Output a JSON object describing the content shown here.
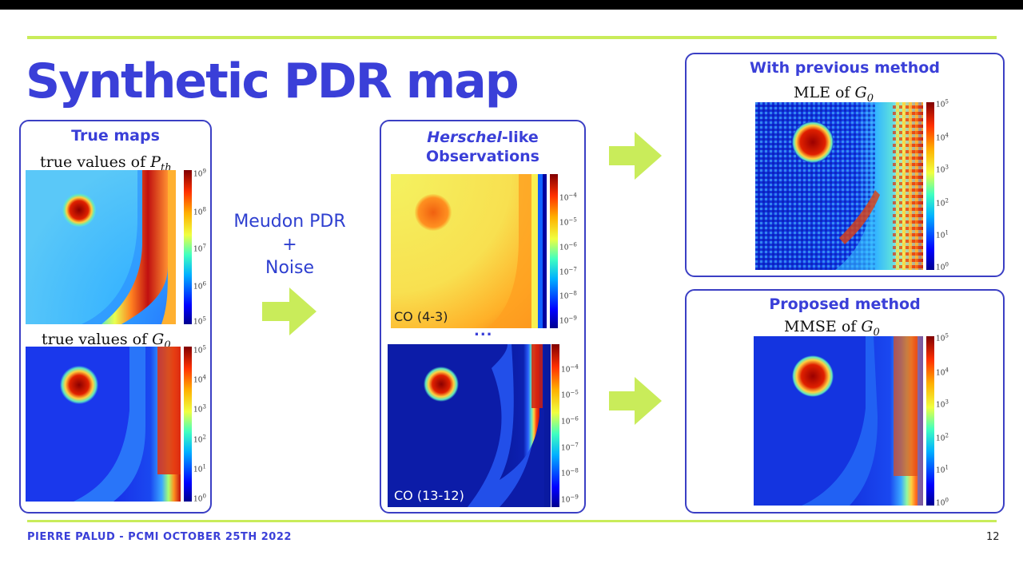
{
  "slide": {
    "title": "Synthetic PDR map",
    "footer": "PIERRE PALUD - PCMI OCTOBER 25TH 2022",
    "page_number": "12",
    "accent_color": "#3a3fd8",
    "rule_color": "#c9ec5a",
    "arrow_color": "#c9ec5a"
  },
  "true_maps": {
    "title": "True maps",
    "map1": {
      "label_text": "true values of ",
      "label_symbol": "P",
      "label_sub": "th",
      "ticks": [
        {
          "b": "10",
          "e": "9"
        },
        {
          "b": "10",
          "e": "8"
        },
        {
          "b": "10",
          "e": "7"
        },
        {
          "b": "10",
          "e": "6"
        },
        {
          "b": "10",
          "e": "5"
        }
      ]
    },
    "map2": {
      "label_text": "true values of ",
      "label_symbol": "G",
      "label_sub": "0",
      "ticks": [
        {
          "b": "10",
          "e": "5"
        },
        {
          "b": "10",
          "e": "4"
        },
        {
          "b": "10",
          "e": "3"
        },
        {
          "b": "10",
          "e": "2"
        },
        {
          "b": "10",
          "e": "1"
        },
        {
          "b": "10",
          "e": "0"
        }
      ]
    }
  },
  "middle": {
    "line1": "Meudon PDR",
    "line2": "+",
    "line3": "Noise"
  },
  "observations": {
    "title_italic": "Herschel",
    "title_rest": "-like",
    "title_line2": "Observations",
    "ellipsis": "...",
    "map1": {
      "label": "CO (4-3)",
      "ticks": [
        {
          "b": "10",
          "e": "−4"
        },
        {
          "b": "10",
          "e": "−5"
        },
        {
          "b": "10",
          "e": "−6"
        },
        {
          "b": "10",
          "e": "−7"
        },
        {
          "b": "10",
          "e": "−8"
        },
        {
          "b": "10",
          "e": "−9"
        }
      ]
    },
    "map2": {
      "label": "CO (13-12)",
      "ticks": [
        {
          "b": "10",
          "e": "−4"
        },
        {
          "b": "10",
          "e": "−5"
        },
        {
          "b": "10",
          "e": "−6"
        },
        {
          "b": "10",
          "e": "−7"
        },
        {
          "b": "10",
          "e": "−8"
        },
        {
          "b": "10",
          "e": "−9"
        }
      ]
    }
  },
  "previous": {
    "title": "With previous method",
    "label_text": "MLE of ",
    "label_symbol": "G",
    "label_sub": "0",
    "ticks": [
      {
        "b": "10",
        "e": "5"
      },
      {
        "b": "10",
        "e": "4"
      },
      {
        "b": "10",
        "e": "3"
      },
      {
        "b": "10",
        "e": "2"
      },
      {
        "b": "10",
        "e": "1"
      },
      {
        "b": "10",
        "e": "0"
      }
    ]
  },
  "proposed": {
    "title": "Proposed method",
    "label_text": "MMSE of ",
    "label_symbol": "G",
    "label_sub": "0",
    "ticks": [
      {
        "b": "10",
        "e": "5"
      },
      {
        "b": "10",
        "e": "4"
      },
      {
        "b": "10",
        "e": "3"
      },
      {
        "b": "10",
        "e": "2"
      },
      {
        "b": "10",
        "e": "1"
      },
      {
        "b": "10",
        "e": "0"
      }
    ]
  }
}
